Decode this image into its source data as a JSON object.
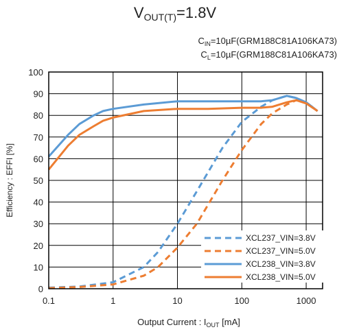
{
  "chart_data": {
    "type": "line",
    "title": {
      "main": "V",
      "sub": "OUT(T)",
      "rest": "=1.8V"
    },
    "conditions": [
      {
        "pre": "C",
        "sub": "IN",
        "post": "=10µF(GRM188C81A106KA73)"
      },
      {
        "pre": "C",
        "sub": "L",
        "post": "=10µF(GRM188C81A106KA73)"
      }
    ],
    "xlabel": {
      "pre": "Output Current : I",
      "sub": "OUT",
      "post": " [mA]"
    },
    "ylabel": "Efficiency : EFFI [%]",
    "x_scale": "log",
    "xlim": [
      0.1,
      1800
    ],
    "ylim": [
      0,
      100
    ],
    "x_ticks": [
      0.1,
      1,
      10,
      100,
      1000
    ],
    "x_tick_labels": [
      "0.1",
      "1",
      "10",
      "100",
      "1000"
    ],
    "y_ticks": [
      0,
      10,
      20,
      30,
      40,
      50,
      60,
      70,
      80,
      90,
      100
    ],
    "grid": true,
    "legend_position": "bottom-right",
    "series": [
      {
        "name": "XCL237_VIN=3.8V",
        "color": "#5B9BD5",
        "style": "dashed",
        "x": [
          0.1,
          0.3,
          1,
          3,
          5,
          10,
          20,
          50,
          100,
          200,
          300,
          500,
          700,
          1000,
          1500
        ],
        "y": [
          0.5,
          1,
          3,
          10,
          17,
          30,
          45,
          65,
          77,
          84,
          87,
          89,
          88,
          86,
          82
        ]
      },
      {
        "name": "XCL237_VIN=5.0V",
        "color": "#ED7D31",
        "style": "dashed",
        "x": [
          0.1,
          0.3,
          1,
          3,
          5,
          10,
          20,
          50,
          100,
          200,
          300,
          500,
          700,
          1000,
          1500
        ],
        "y": [
          0.3,
          0.8,
          2,
          6,
          10,
          19,
          30,
          50,
          64,
          76,
          81,
          85,
          87,
          86,
          82
        ]
      },
      {
        "name": "XCL238_VIN=3.8V",
        "color": "#5B9BD5",
        "style": "solid",
        "x": [
          0.1,
          0.2,
          0.3,
          0.5,
          0.7,
          1,
          3,
          10,
          30,
          100,
          200,
          300,
          500,
          700,
          1000,
          1500
        ],
        "y": [
          61,
          71,
          76,
          80,
          82,
          83,
          85,
          86.5,
          86.5,
          86.5,
          86.5,
          87,
          89,
          88,
          86,
          82
        ]
      },
      {
        "name": "XCL238_VIN=5.0V",
        "color": "#ED7D31",
        "style": "solid",
        "x": [
          0.1,
          0.2,
          0.3,
          0.5,
          0.7,
          1,
          3,
          10,
          30,
          100,
          200,
          300,
          500,
          700,
          1000,
          1500
        ],
        "y": [
          55,
          66,
          71,
          75,
          77.5,
          79,
          82,
          83,
          83,
          83.5,
          83.5,
          84,
          86,
          87,
          85.5,
          82
        ]
      }
    ]
  }
}
